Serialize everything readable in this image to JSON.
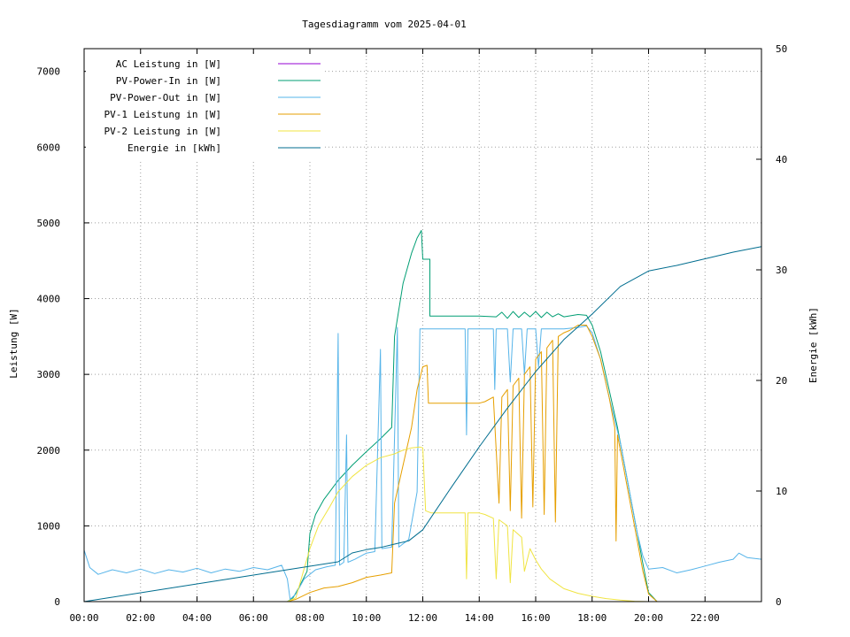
{
  "chart_data": {
    "type": "line",
    "title": "Tagesdiagramm vom 2025-04-01",
    "ylabel": "Leistung [W]",
    "y2label": "Energie [kWh]",
    "xlim": [
      0,
      24
    ],
    "ylim": [
      0,
      7300
    ],
    "y2lim": [
      0,
      50
    ],
    "grid": true,
    "legend_position": "top-left",
    "x_ticks": [
      {
        "v": 0,
        "label": "00:00"
      },
      {
        "v": 2,
        "label": "02:00"
      },
      {
        "v": 4,
        "label": "04:00"
      },
      {
        "v": 6,
        "label": "06:00"
      },
      {
        "v": 8,
        "label": "08:00"
      },
      {
        "v": 10,
        "label": "10:00"
      },
      {
        "v": 12,
        "label": "12:00"
      },
      {
        "v": 14,
        "label": "14:00"
      },
      {
        "v": 16,
        "label": "16:00"
      },
      {
        "v": 18,
        "label": "18:00"
      },
      {
        "v": 20,
        "label": "20:00"
      },
      {
        "v": 22,
        "label": "22:00"
      }
    ],
    "y_ticks": [
      {
        "v": 0,
        "label": "0"
      },
      {
        "v": 1000,
        "label": "1000"
      },
      {
        "v": 2000,
        "label": "2000"
      },
      {
        "v": 3000,
        "label": "3000"
      },
      {
        "v": 4000,
        "label": "4000"
      },
      {
        "v": 5000,
        "label": "5000"
      },
      {
        "v": 6000,
        "label": "6000"
      },
      {
        "v": 7000,
        "label": "7000"
      }
    ],
    "y2_ticks": [
      {
        "v": 0,
        "label": "0"
      },
      {
        "v": 10,
        "label": "10"
      },
      {
        "v": 20,
        "label": "20"
      },
      {
        "v": 30,
        "label": "30"
      },
      {
        "v": 40,
        "label": "40"
      },
      {
        "v": 50,
        "label": "50"
      }
    ],
    "series": [
      {
        "name": "AC Leistung in [W]",
        "color": "#9400d3",
        "axis": "y1",
        "points": []
      },
      {
        "name": "PV-Power-In in [W]",
        "color": "#009e73",
        "axis": "y1",
        "points": [
          [
            7.2,
            0
          ],
          [
            7.4,
            50
          ],
          [
            7.6,
            180
          ],
          [
            7.9,
            400
          ],
          [
            8.0,
            900
          ],
          [
            8.2,
            1150
          ],
          [
            8.5,
            1350
          ],
          [
            9.0,
            1600
          ],
          [
            9.5,
            1800
          ],
          [
            10.0,
            1980
          ],
          [
            10.5,
            2150
          ],
          [
            10.9,
            2300
          ],
          [
            11.0,
            3500
          ],
          [
            11.3,
            4200
          ],
          [
            11.6,
            4600
          ],
          [
            11.8,
            4800
          ],
          [
            11.95,
            4900
          ],
          [
            12.0,
            4520
          ],
          [
            12.25,
            4520
          ],
          [
            12.25,
            3770
          ],
          [
            13.0,
            3770
          ],
          [
            14.0,
            3770
          ],
          [
            14.6,
            3760
          ],
          [
            14.8,
            3820
          ],
          [
            15.0,
            3740
          ],
          [
            15.2,
            3830
          ],
          [
            15.4,
            3750
          ],
          [
            15.6,
            3820
          ],
          [
            15.8,
            3760
          ],
          [
            16.0,
            3830
          ],
          [
            16.2,
            3750
          ],
          [
            16.4,
            3820
          ],
          [
            16.6,
            3760
          ],
          [
            16.8,
            3800
          ],
          [
            17.0,
            3760
          ],
          [
            17.5,
            3790
          ],
          [
            17.8,
            3780
          ],
          [
            18.0,
            3650
          ],
          [
            18.3,
            3300
          ],
          [
            18.6,
            2800
          ],
          [
            18.9,
            2300
          ],
          [
            19.2,
            1700
          ],
          [
            19.5,
            1100
          ],
          [
            19.8,
            500
          ],
          [
            20.0,
            120
          ],
          [
            20.3,
            0
          ]
        ]
      },
      {
        "name": "PV-Power-Out in [W]",
        "color": "#56b4e9",
        "axis": "y1",
        "points": [
          [
            0,
            680
          ],
          [
            0.2,
            450
          ],
          [
            0.5,
            360
          ],
          [
            1.0,
            420
          ],
          [
            1.5,
            380
          ],
          [
            2.0,
            430
          ],
          [
            2.5,
            370
          ],
          [
            3.0,
            420
          ],
          [
            3.5,
            390
          ],
          [
            4.0,
            440
          ],
          [
            4.5,
            380
          ],
          [
            5.0,
            430
          ],
          [
            5.5,
            400
          ],
          [
            6.0,
            450
          ],
          [
            6.5,
            420
          ],
          [
            7.0,
            480
          ],
          [
            7.2,
            300
          ],
          [
            7.3,
            30
          ],
          [
            7.5,
            100
          ],
          [
            7.8,
            300
          ],
          [
            8.2,
            420
          ],
          [
            8.6,
            460
          ],
          [
            8.9,
            480
          ],
          [
            9.0,
            3540
          ],
          [
            9.05,
            480
          ],
          [
            9.2,
            520
          ],
          [
            9.3,
            2200
          ],
          [
            9.35,
            520
          ],
          [
            9.6,
            560
          ],
          [
            9.8,
            600
          ],
          [
            10.0,
            640
          ],
          [
            10.3,
            660
          ],
          [
            10.5,
            3330
          ],
          [
            10.55,
            700
          ],
          [
            10.9,
            720
          ],
          [
            11.1,
            3620
          ],
          [
            11.15,
            720
          ],
          [
            11.5,
            820
          ],
          [
            11.8,
            1450
          ],
          [
            11.9,
            3600
          ],
          [
            12.25,
            3600
          ],
          [
            13.0,
            3600
          ],
          [
            13.5,
            3600
          ],
          [
            13.55,
            2200
          ],
          [
            13.6,
            3600
          ],
          [
            14.5,
            3600
          ],
          [
            14.55,
            2800
          ],
          [
            14.6,
            3600
          ],
          [
            15.0,
            3600
          ],
          [
            15.1,
            2900
          ],
          [
            15.2,
            3600
          ],
          [
            15.5,
            3600
          ],
          [
            15.6,
            3000
          ],
          [
            15.7,
            3600
          ],
          [
            16.0,
            3600
          ],
          [
            16.1,
            3100
          ],
          [
            16.2,
            3600
          ],
          [
            16.5,
            3600
          ],
          [
            17.0,
            3600
          ],
          [
            17.5,
            3620
          ],
          [
            17.8,
            3640
          ],
          [
            18.0,
            3550
          ],
          [
            18.3,
            3200
          ],
          [
            18.6,
            2700
          ],
          [
            19.0,
            2100
          ],
          [
            19.3,
            1500
          ],
          [
            19.6,
            900
          ],
          [
            19.8,
            600
          ],
          [
            20.0,
            430
          ],
          [
            20.5,
            450
          ],
          [
            21.0,
            380
          ],
          [
            21.5,
            420
          ],
          [
            22.0,
            470
          ],
          [
            22.5,
            520
          ],
          [
            23.0,
            560
          ],
          [
            23.2,
            640
          ],
          [
            23.5,
            580
          ],
          [
            24.0,
            560
          ]
        ]
      },
      {
        "name": "PV-1 Leistung in [W]",
        "color": "#e69f00",
        "axis": "y1",
        "points": [
          [
            7.2,
            0
          ],
          [
            7.5,
            30
          ],
          [
            8.0,
            120
          ],
          [
            8.5,
            180
          ],
          [
            9.0,
            200
          ],
          [
            9.5,
            250
          ],
          [
            10.0,
            320
          ],
          [
            10.5,
            350
          ],
          [
            10.9,
            380
          ],
          [
            11.0,
            1300
          ],
          [
            11.3,
            1800
          ],
          [
            11.6,
            2300
          ],
          [
            11.8,
            2800
          ],
          [
            12.0,
            3100
          ],
          [
            12.15,
            3120
          ],
          [
            12.2,
            2620
          ],
          [
            12.5,
            2620
          ],
          [
            13.0,
            2620
          ],
          [
            13.5,
            2620
          ],
          [
            14.0,
            2620
          ],
          [
            14.2,
            2640
          ],
          [
            14.5,
            2700
          ],
          [
            14.7,
            1300
          ],
          [
            14.8,
            2700
          ],
          [
            15.0,
            2800
          ],
          [
            15.1,
            1200
          ],
          [
            15.2,
            2850
          ],
          [
            15.4,
            2950
          ],
          [
            15.5,
            1100
          ],
          [
            15.6,
            3000
          ],
          [
            15.8,
            3100
          ],
          [
            15.9,
            1250
          ],
          [
            16.0,
            3200
          ],
          [
            16.2,
            3300
          ],
          [
            16.3,
            1150
          ],
          [
            16.4,
            3350
          ],
          [
            16.6,
            3450
          ],
          [
            16.7,
            1050
          ],
          [
            16.8,
            3500
          ],
          [
            17.0,
            3550
          ],
          [
            17.2,
            3580
          ],
          [
            17.5,
            3650
          ],
          [
            17.8,
            3650
          ],
          [
            18.0,
            3500
          ],
          [
            18.3,
            3200
          ],
          [
            18.6,
            2700
          ],
          [
            18.8,
            2300
          ],
          [
            18.85,
            800
          ],
          [
            18.9,
            2200
          ],
          [
            19.2,
            1600
          ],
          [
            19.5,
            1000
          ],
          [
            19.8,
            400
          ],
          [
            20.0,
            100
          ],
          [
            20.3,
            0
          ]
        ]
      },
      {
        "name": "PV-2 Leistung in [W]",
        "color": "#f0e442",
        "axis": "y1",
        "points": [
          [
            7.2,
            0
          ],
          [
            7.5,
            50
          ],
          [
            8.0,
            700
          ],
          [
            8.3,
            1000
          ],
          [
            8.7,
            1250
          ],
          [
            9.0,
            1450
          ],
          [
            9.5,
            1650
          ],
          [
            10.0,
            1800
          ],
          [
            10.5,
            1900
          ],
          [
            11.0,
            1950
          ],
          [
            11.3,
            2000
          ],
          [
            11.6,
            2030
          ],
          [
            11.9,
            2040
          ],
          [
            12.0,
            2030
          ],
          [
            12.1,
            1200
          ],
          [
            12.3,
            1170
          ],
          [
            13.0,
            1170
          ],
          [
            13.5,
            1170
          ],
          [
            13.55,
            300
          ],
          [
            13.6,
            1170
          ],
          [
            14.0,
            1170
          ],
          [
            14.2,
            1150
          ],
          [
            14.5,
            1100
          ],
          [
            14.6,
            300
          ],
          [
            14.7,
            1080
          ],
          [
            15.0,
            1000
          ],
          [
            15.1,
            250
          ],
          [
            15.2,
            950
          ],
          [
            15.5,
            850
          ],
          [
            15.6,
            400
          ],
          [
            15.8,
            700
          ],
          [
            16.0,
            550
          ],
          [
            16.2,
            430
          ],
          [
            16.5,
            300
          ],
          [
            17.0,
            170
          ],
          [
            17.5,
            110
          ],
          [
            18.0,
            70
          ],
          [
            18.5,
            40
          ],
          [
            19.0,
            20
          ],
          [
            19.5,
            5
          ],
          [
            20.0,
            0
          ]
        ]
      },
      {
        "name": "Energie in [kWh]",
        "color": "#006d8f",
        "axis": "y2",
        "points": [
          [
            0,
            0
          ],
          [
            1,
            0.4
          ],
          [
            2,
            0.8
          ],
          [
            3,
            1.2
          ],
          [
            4,
            1.6
          ],
          [
            5,
            2.0
          ],
          [
            6,
            2.4
          ],
          [
            7,
            2.8
          ],
          [
            8,
            3.2
          ],
          [
            9,
            3.6
          ],
          [
            9.5,
            4.4
          ],
          [
            10,
            4.7
          ],
          [
            10.5,
            4.9
          ],
          [
            11,
            5.2
          ],
          [
            11.5,
            5.5
          ],
          [
            12,
            6.5
          ],
          [
            13,
            10.3
          ],
          [
            14,
            14.0
          ],
          [
            15,
            17.5
          ],
          [
            16,
            20.8
          ],
          [
            17,
            23.7
          ],
          [
            18,
            26.0
          ],
          [
            19,
            28.5
          ],
          [
            20,
            29.9
          ],
          [
            21,
            30.4
          ],
          [
            22,
            31.0
          ],
          [
            23,
            31.6
          ],
          [
            24,
            32.1
          ]
        ]
      }
    ]
  }
}
